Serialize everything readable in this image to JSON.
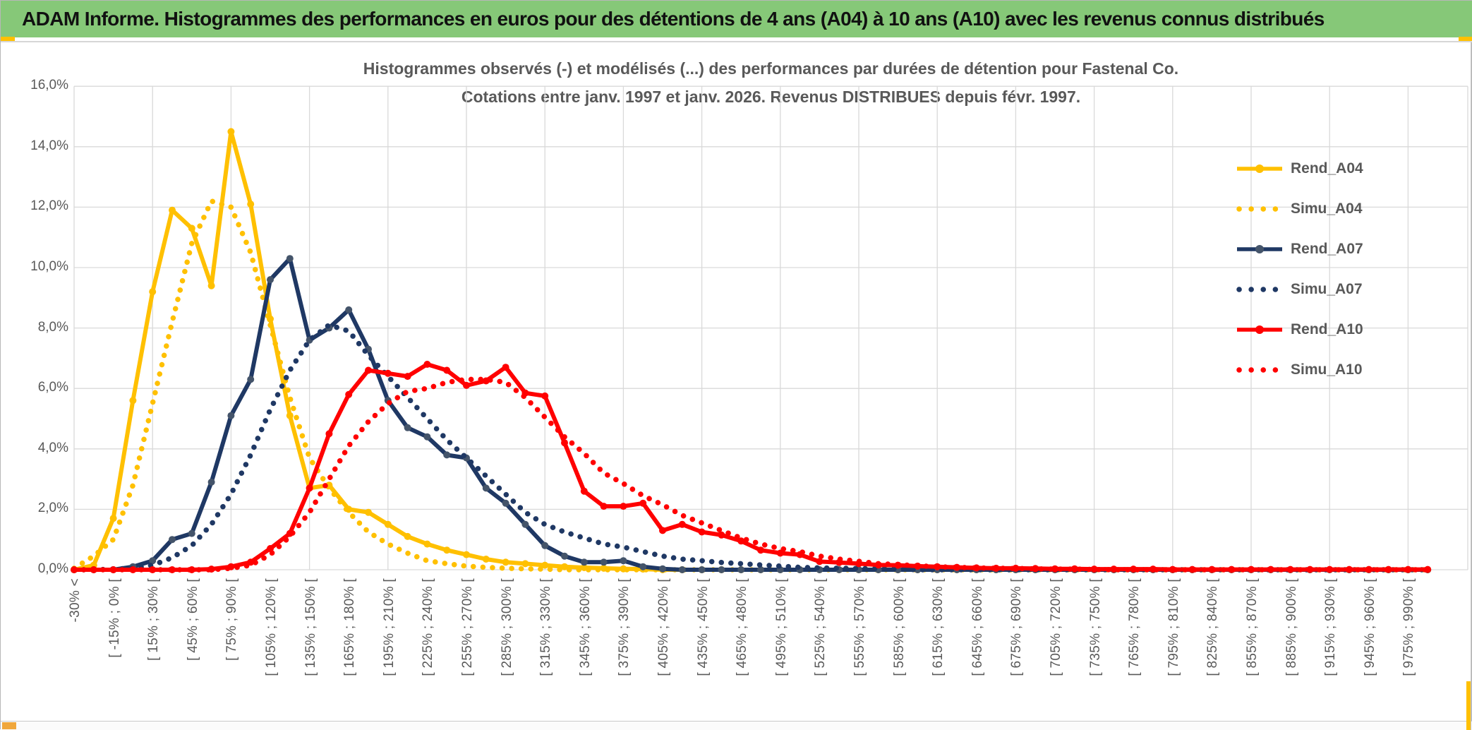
{
  "banner": {
    "title": "ADAM Informe. Histogrammes des performances en euros pour des détentions de 4 ans (A04) à 10 ans (A10) avec les revenus connus distribués"
  },
  "colors": {
    "banner_bg": "#86C878",
    "accent_yellow": "#FFC000",
    "grid": "#D9D9D9",
    "axis_text": "#595959",
    "gold": "#FFC000",
    "navy": "#1F3864",
    "navy_marker": "#44546A",
    "red": "#FF0000",
    "scroll_thumb_orange": "#F0A73C"
  },
  "chart_data": {
    "type": "line",
    "title_line1": "Histogrammes observés (-) et modélisés (...) des performances par durées de détention pour Fastenal Co.",
    "title_line2": "Cotations entre janv. 1997 et janv. 2026. Revenus DISTRIBUES depuis févr. 1997.",
    "grid": true,
    "legend_position": "right",
    "ylim": [
      0,
      16
    ],
    "y_ticks": [
      "0,0%",
      "2,0%",
      "4,0%",
      "6,0%",
      "8,0%",
      "10,0%",
      "12,0%",
      "14,0%",
      "16,0%"
    ],
    "x_bucket_width_pct": 15,
    "n_points": 70,
    "x_labels_every_n_buckets": 2,
    "x_labels": [
      "-30% <",
      "[ -15% ; 0% [",
      "[ 15% ; 30% [",
      "[ 45% ; 60% [",
      "[ 75% ; 90% [",
      "[ 105% ; 120% [",
      "[ 135% ; 150% [",
      "[ 165% ; 180% [",
      "[ 195% ; 210% [",
      "[ 225% ; 240% [",
      "[ 255% ; 270% [",
      "[ 285% ; 300% [",
      "[ 315% ; 330% [",
      "[ 345% ; 360% [",
      "[ 375% ; 390% [",
      "[ 405% ; 420% [",
      "[ 435% ; 450% [",
      "[ 465% ; 480% [",
      "[ 495% ; 510% [",
      "[ 525% ; 540% [",
      "[ 555% ; 570% [",
      "[ 585% ; 600% [",
      "[ 615% ; 630% [",
      "[ 645% ; 660% [",
      "[ 675% ; 690% [",
      "[ 705% ; 720% [",
      "[ 735% ; 750% [",
      "[ 765% ; 780% [",
      "[ 795% ; 810% [",
      "[ 825% ; 840% [",
      "[ 855% ; 870% [",
      "[ 885% ; 900% [",
      "[ 915% ; 930% [",
      "[ 945% ; 960% [",
      "[ 975% ; 990% ["
    ],
    "series": [
      {
        "name": "Rend_A04",
        "style": "solid",
        "color": "#FFC000",
        "marker_color": "#FFC000",
        "values": [
          0,
          0.15,
          1.7,
          5.6,
          9.2,
          11.9,
          11.3,
          9.4,
          14.5,
          12.1,
          8.3,
          5.1,
          2.7,
          2.8,
          2,
          1.9,
          1.5,
          1.1,
          0.85,
          0.65,
          0.5,
          0.35,
          0.25,
          0.2,
          0.15,
          0.1,
          0.07,
          0.05,
          0.03,
          0.02,
          0,
          0,
          0,
          0,
          0,
          0,
          0,
          0,
          0,
          0,
          0,
          0,
          0,
          0,
          0,
          0,
          0,
          0,
          0,
          0,
          0,
          0,
          0,
          0,
          0,
          0,
          0,
          0,
          0,
          0,
          0,
          0,
          0,
          0,
          0,
          0,
          0,
          0,
          0,
          0
        ]
      },
      {
        "name": "Simu_A04",
        "style": "dotted",
        "color": "#FFC000",
        "values": [
          0.05,
          0.45,
          1,
          2.8,
          5.5,
          8.2,
          10.8,
          12.2,
          12,
          10.5,
          8.1,
          5.7,
          3.7,
          2.7,
          1.9,
          1.25,
          0.85,
          0.55,
          0.3,
          0.2,
          0.12,
          0.08,
          0.05,
          0.03,
          0.02,
          0,
          0,
          0,
          0,
          0,
          0,
          0,
          0,
          0,
          0,
          0,
          0,
          0,
          0,
          0,
          0,
          0,
          0,
          0,
          0,
          0,
          0,
          0,
          0,
          0,
          0,
          0,
          0,
          0,
          0,
          0,
          0,
          0,
          0,
          0,
          0,
          0,
          0,
          0,
          0,
          0,
          0,
          0,
          0,
          0
        ]
      },
      {
        "name": "Rend_A07",
        "style": "solid",
        "color": "#1F3864",
        "marker_color": "#44546A",
        "values": [
          0,
          0,
          0,
          0.1,
          0.3,
          1,
          1.2,
          2.9,
          5.1,
          6.3,
          9.6,
          10.3,
          7.6,
          8,
          8.6,
          7.3,
          5.6,
          4.7,
          4.4,
          3.8,
          3.7,
          2.7,
          2.2,
          1.5,
          0.8,
          0.45,
          0.25,
          0.25,
          0.3,
          0.1,
          0.03,
          0,
          0,
          0,
          0,
          0,
          0,
          0,
          0,
          0,
          0,
          0,
          0,
          0,
          0,
          0,
          0,
          0,
          0,
          0,
          0,
          0,
          0,
          0,
          0,
          0,
          0,
          0,
          0,
          0,
          0,
          0,
          0,
          0,
          0,
          0,
          0,
          0,
          0,
          0
        ]
      },
      {
        "name": "Simu_A07",
        "style": "dotted",
        "color": "#1F3864",
        "values": [
          0,
          0,
          0.02,
          0.05,
          0.15,
          0.4,
          0.8,
          1.5,
          2.5,
          3.8,
          5.3,
          6.6,
          7.6,
          8.1,
          7.9,
          7.1,
          6.4,
          5.7,
          5,
          4.3,
          3.7,
          3.1,
          2.5,
          1.9,
          1.5,
          1.25,
          1.05,
          0.85,
          0.75,
          0.6,
          0.45,
          0.35,
          0.3,
          0.24,
          0.2,
          0.16,
          0.12,
          0.08,
          0.06,
          0.05,
          0.04,
          0.03,
          0.02,
          0,
          0,
          0,
          0,
          0,
          0,
          0,
          0,
          0,
          0,
          0,
          0,
          0,
          0,
          0,
          0,
          0,
          0,
          0,
          0,
          0,
          0,
          0,
          0,
          0,
          0,
          0
        ]
      },
      {
        "name": "Rend_A10",
        "style": "solid",
        "color": "#FF0000",
        "marker_color": "#FF0000",
        "values": [
          0,
          0,
          0,
          0,
          0,
          0,
          0,
          0.02,
          0.1,
          0.25,
          0.7,
          1.2,
          2.7,
          4.5,
          5.8,
          6.6,
          6.5,
          6.4,
          6.8,
          6.6,
          6.1,
          6.25,
          6.7,
          5.85,
          5.75,
          4.2,
          2.6,
          2.1,
          2.1,
          2.2,
          1.3,
          1.5,
          1.25,
          1.15,
          0.95,
          0.65,
          0.55,
          0.5,
          0.27,
          0.24,
          0.2,
          0.16,
          0.15,
          0.12,
          0.1,
          0.08,
          0.06,
          0.05,
          0.05,
          0.04,
          0.03,
          0.03,
          0.02,
          0.02,
          0.02,
          0.02,
          0.01,
          0.01,
          0.01,
          0.01,
          0.01,
          0.01,
          0.01,
          0.01,
          0.01,
          0.01,
          0.01,
          0.01,
          0.01,
          0.01
        ]
      },
      {
        "name": "Simu_A10",
        "style": "dotted",
        "color": "#FF0000",
        "values": [
          0,
          0,
          0,
          0,
          0,
          0,
          0,
          0,
          0.05,
          0.15,
          0.5,
          1.1,
          1.9,
          3,
          4.1,
          4.9,
          5.5,
          5.9,
          6,
          6.2,
          6.3,
          6.3,
          6.2,
          5.7,
          5.05,
          4.4,
          3.85,
          3.2,
          2.85,
          2.45,
          2.15,
          1.8,
          1.55,
          1.3,
          1.05,
          0.85,
          0.7,
          0.6,
          0.45,
          0.35,
          0.28,
          0.2,
          0.17,
          0.13,
          0.1,
          0.08,
          0.06,
          0.05,
          0.04,
          0.03,
          0.02,
          0.02,
          0.01,
          0,
          0,
          0,
          0,
          0,
          0,
          0,
          0,
          0,
          0,
          0,
          0,
          0,
          0,
          0,
          0,
          0
        ]
      }
    ]
  }
}
